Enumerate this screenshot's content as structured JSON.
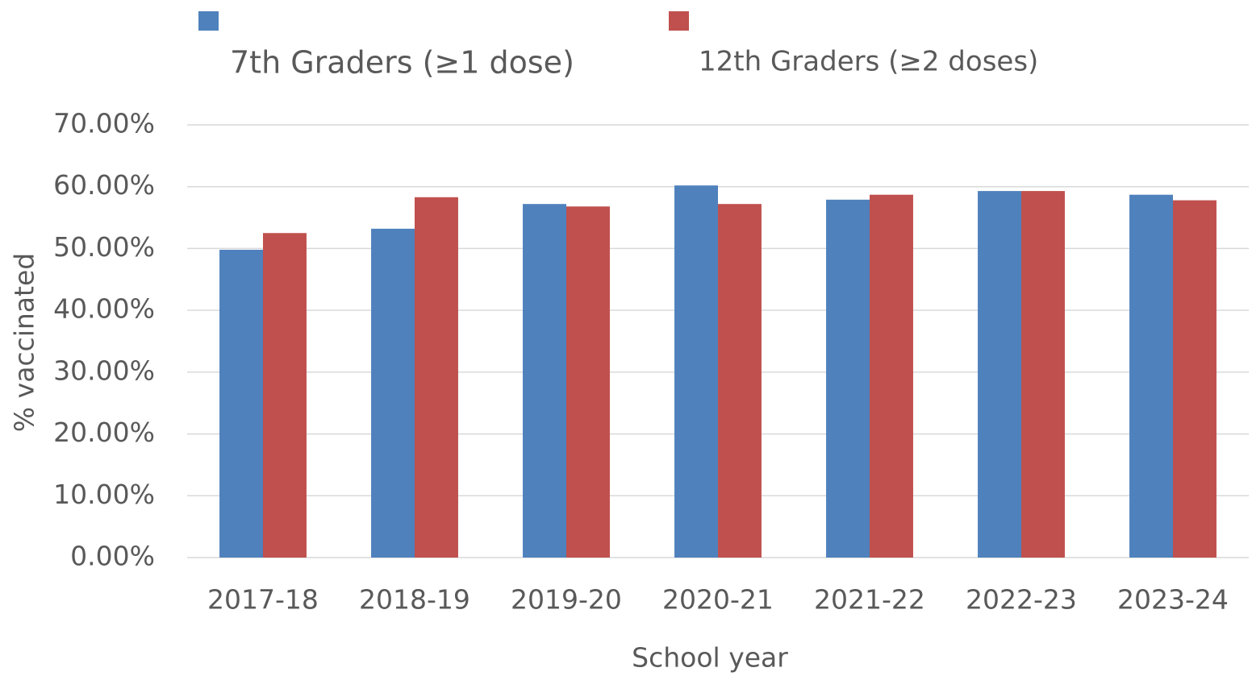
{
  "chart_data": {
    "type": "bar",
    "categories": [
      "2017-18",
      "2018-19",
      "2019-20",
      "2020-21",
      "2021-22",
      "2022-23",
      "2023-24"
    ],
    "series": [
      {
        "name": "7th Graders (≥1 dose)",
        "color": "#4f81bd",
        "values": [
          49.8,
          53.2,
          57.2,
          60.2,
          57.9,
          59.3,
          58.7
        ]
      },
      {
        "name": "12th Graders (≥2 doses)",
        "color": "#c0504d",
        "values": [
          52.5,
          58.3,
          56.8,
          57.2,
          58.7,
          59.3,
          57.8
        ]
      }
    ],
    "xlabel": "School year",
    "ylabel": "% vaccinated",
    "ylim": [
      0,
      70
    ],
    "yticks": [
      {
        "value": 0,
        "label": "0.00%"
      },
      {
        "value": 10,
        "label": "10.00%"
      },
      {
        "value": 20,
        "label": "20.00%"
      },
      {
        "value": 30,
        "label": "30.00%"
      },
      {
        "value": 40,
        "label": "40.00%"
      },
      {
        "value": 50,
        "label": "50.00%"
      },
      {
        "value": 60,
        "label": "60.00%"
      },
      {
        "value": 70,
        "label": "70.00%"
      }
    ],
    "grid": true,
    "legend": "top"
  }
}
